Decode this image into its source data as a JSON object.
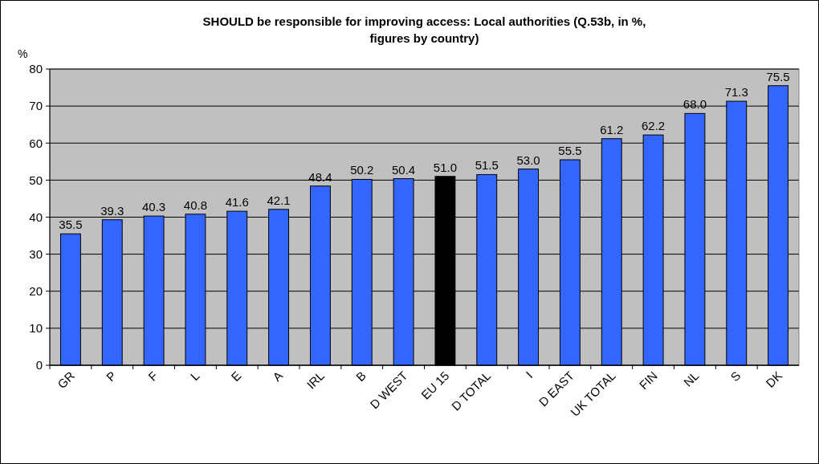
{
  "chart_data": {
    "type": "bar",
    "title": "SHOULD be responsible for improving access: Local authorities (Q.53b, in %, figures by country)",
    "ylabel": "%",
    "categories": [
      "GR",
      "P",
      "F",
      "L",
      "E",
      "A",
      "IRL",
      "B",
      "D WEST",
      "EU 15",
      "D TOTAL",
      "I",
      "D EAST",
      "UK TOTAL",
      "FIN",
      "NL",
      "S",
      "DK"
    ],
    "values": [
      35.5,
      39.3,
      40.3,
      40.8,
      41.6,
      42.1,
      48.4,
      50.2,
      50.4,
      51.0,
      51.5,
      53.0,
      55.5,
      61.2,
      62.2,
      68.0,
      71.3,
      75.5
    ],
    "value_labels": [
      "35.5",
      "39.3",
      "40.3",
      "40.8",
      "41.6",
      "42.1",
      "48.4",
      "50.2",
      "50.4",
      "51.0",
      "51.5",
      "53.0",
      "55.5",
      "61.2",
      "62.2",
      "68.0",
      "71.3",
      "75.5"
    ],
    "colors": [
      "#3366ff",
      "#3366ff",
      "#3366ff",
      "#3366ff",
      "#3366ff",
      "#3366ff",
      "#3366ff",
      "#3366ff",
      "#3366ff",
      "#000000",
      "#3366ff",
      "#3366ff",
      "#3366ff",
      "#3366ff",
      "#3366ff",
      "#3366ff",
      "#3366ff",
      "#3366ff"
    ],
    "ylim": [
      0,
      80
    ],
    "yticks": [
      0,
      10,
      20,
      30,
      40,
      50,
      60,
      70,
      80
    ],
    "grid": "y"
  }
}
